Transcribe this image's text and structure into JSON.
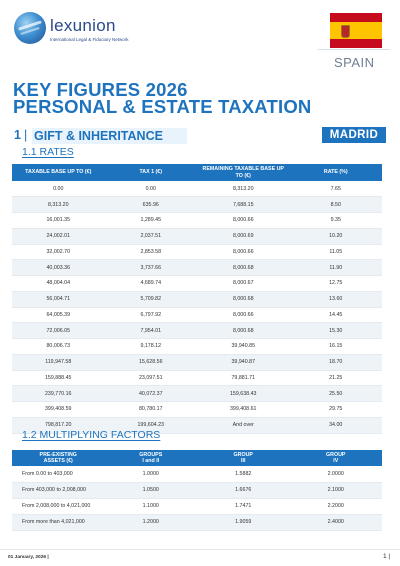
{
  "brand": {
    "name": "lexunion",
    "tagline": "International Legal & Fiduciary Network"
  },
  "country": "SPAIN",
  "title": {
    "line1": "KEY FIGURES 2026",
    "line2": "PERSONAL & ESTATE TAXATION"
  },
  "section": {
    "number": "1",
    "label": "GIFT & INHERITANCE",
    "region": "MADRID"
  },
  "rates": {
    "heading": "1.1 RATES",
    "columns": [
      "TAXABLE BASE UP TO (€)",
      "TAX 1 (€)",
      "REMAINING TAXABLE BASE UP TO (€)",
      "RATE (%)"
    ],
    "rows": [
      [
        "0.00",
        "0.00",
        "8,313.20",
        "7.65"
      ],
      [
        "8,313.20",
        "635.96",
        "7,688.15",
        "8.50"
      ],
      [
        "16,001.35",
        "1,289.45",
        "8,000.66",
        "9.35"
      ],
      [
        "24,002.01",
        "2,037.51",
        "8,000.69",
        "10.20"
      ],
      [
        "32,002.70",
        "2,853.58",
        "8,000.66",
        "11.05"
      ],
      [
        "40,003.36",
        "3,737.66",
        "8,000.68",
        "11.90"
      ],
      [
        "48,004.04",
        "4,689.74",
        "8,000.67",
        "12.75"
      ],
      [
        "56,004.71",
        "5,709.82",
        "8,000.68",
        "13.60"
      ],
      [
        "64,005.39",
        "6,797.92",
        "8,000.66",
        "14.45"
      ],
      [
        "72,006.05",
        "7,954.01",
        "8,000.68",
        "15.30"
      ],
      [
        "80,006.73",
        "9,178.12",
        "39,940.85",
        "16.15"
      ],
      [
        "119,947.58",
        "15,628.56",
        "39,940.87",
        "18.70"
      ],
      [
        "159,888.45",
        "23,097.51",
        "79,881.71",
        "21.25"
      ],
      [
        "239,770.16",
        "40,072.37",
        "159,638.43",
        "25.50"
      ],
      [
        "399,408.59",
        "80,780.17",
        "399,408.61",
        "29.75"
      ],
      [
        "798,817.20",
        "199,604.23",
        "And over",
        "34.00"
      ]
    ]
  },
  "multiplying": {
    "heading": "1.2 MULTIPLYING FACTORS",
    "columns": [
      {
        "l1": "PRE-EXISTING",
        "l2": "ASSETS (€)"
      },
      {
        "l1": "GROUPS",
        "l2": "I and II"
      },
      {
        "l1": "GROUP",
        "l2": "III"
      },
      {
        "l1": "GROUP",
        "l2": "IV"
      }
    ],
    "rows": [
      [
        "From 0.00 to 403,000",
        "1.0000",
        "1.5882",
        "2.0000"
      ],
      [
        "From 403,000 to 2,008,000",
        "1.0500",
        "1.6676",
        "2.1000"
      ],
      [
        "From 2,008,000 to 4,021,000",
        "1.1000",
        "1.7471",
        "2.2000"
      ],
      [
        "From more than 4,021,000",
        "1.2000",
        "1.9059",
        "2.4000"
      ]
    ]
  },
  "footer": {
    "date": "01 January, 2026 |",
    "page": "1 |"
  },
  "colors": {
    "primary": "#1e73be",
    "section_bg": "#e9f3fb",
    "row_alt": "#eef3f8",
    "flag_red": "#c60b1e",
    "flag_yellow": "#ffc400"
  }
}
